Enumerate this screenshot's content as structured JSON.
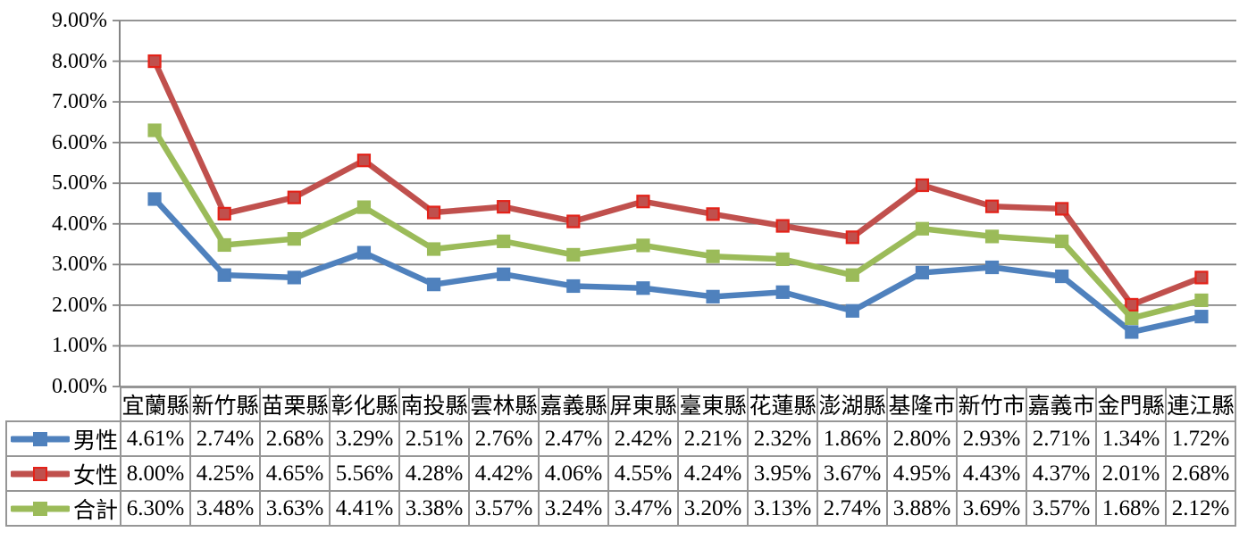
{
  "chart_data": {
    "type": "line",
    "categories": [
      "宜蘭縣",
      "新竹縣",
      "苗栗縣",
      "彰化縣",
      "南投縣",
      "雲林縣",
      "嘉義縣",
      "屏東縣",
      "臺東縣",
      "花蓮縣",
      "澎湖縣",
      "基隆市",
      "新竹市",
      "嘉義市",
      "金門縣",
      "連江縣"
    ],
    "series": [
      {
        "name": "男性",
        "color": "#4F81BD",
        "marker_border": "#4F81BD",
        "values": [
          4.61,
          2.74,
          2.68,
          3.29,
          2.51,
          2.76,
          2.47,
          2.42,
          2.21,
          2.32,
          1.86,
          2.8,
          2.93,
          2.71,
          1.34,
          1.72
        ]
      },
      {
        "name": "女性",
        "color": "#C0504D",
        "marker_border": "#E32219",
        "values": [
          8.0,
          4.25,
          4.65,
          5.56,
          4.28,
          4.42,
          4.06,
          4.55,
          4.24,
          3.95,
          3.67,
          4.95,
          4.43,
          4.37,
          2.01,
          2.68
        ]
      },
      {
        "name": "合計",
        "color": "#9BBB59",
        "marker_border": "#9BBB59",
        "values": [
          6.3,
          3.48,
          3.63,
          4.41,
          3.38,
          3.57,
          3.24,
          3.47,
          3.2,
          3.13,
          2.74,
          3.88,
          3.69,
          3.57,
          1.68,
          2.12
        ]
      }
    ],
    "title": "",
    "xlabel": "",
    "ylabel": "",
    "ylim": [
      0,
      9
    ],
    "ytick_step": 1,
    "ytick_labels": [
      "0.00%",
      "1.00%",
      "2.00%",
      "3.00%",
      "4.00%",
      "5.00%",
      "6.00%",
      "7.00%",
      "8.00%",
      "9.00%"
    ],
    "value_suffix": "%",
    "value_decimals": 2,
    "grid": "horizontal",
    "grid_color": "#848484",
    "axis_color": "#848484",
    "legend_position": "table-left-column",
    "table_border_color": "#969696",
    "background_color": "#ffffff"
  }
}
